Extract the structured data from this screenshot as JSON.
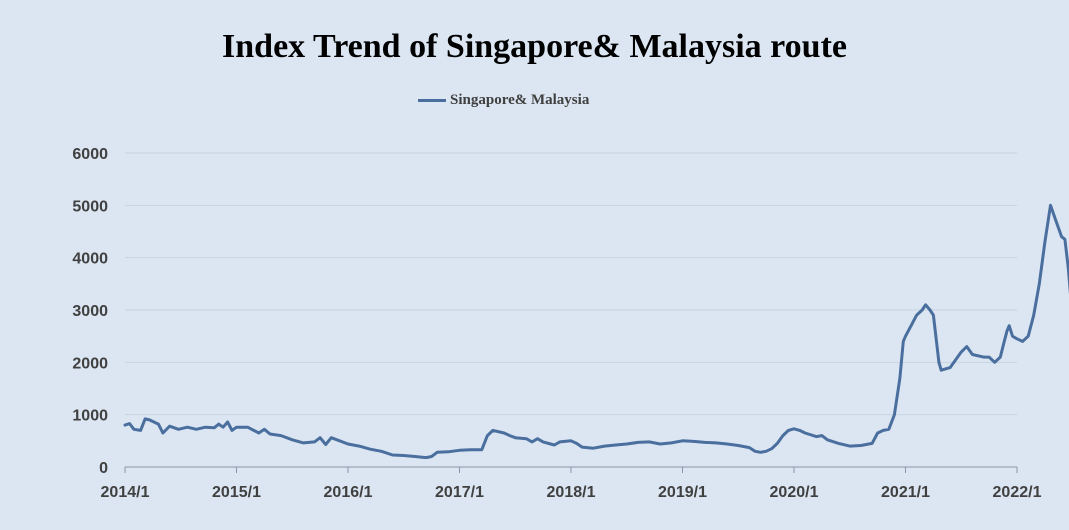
{
  "chart_data": {
    "type": "line",
    "title": "Index Trend of Singapore& Malaysia route",
    "xlabel": "",
    "ylabel": "",
    "ylim": [
      0,
      6000
    ],
    "yticks": [
      "0",
      "1000",
      "2000",
      "3000",
      "4000",
      "5000",
      "6000"
    ],
    "xticks": [
      "2014/1",
      "2015/1",
      "2016/1",
      "2017/1",
      "2018/1",
      "2019/1",
      "2020/1",
      "2021/1",
      "2022/1"
    ],
    "grid": "horizontal",
    "legend": "top-center",
    "line_color": "#4a6f9e",
    "series": [
      {
        "name": "Singapore& Malaysia",
        "points": [
          [
            0.0,
            800
          ],
          [
            0.04,
            830
          ],
          [
            0.08,
            720
          ],
          [
            0.14,
            700
          ],
          [
            0.18,
            920
          ],
          [
            0.22,
            900
          ],
          [
            0.3,
            820
          ],
          [
            0.34,
            650
          ],
          [
            0.4,
            780
          ],
          [
            0.48,
            720
          ],
          [
            0.56,
            760
          ],
          [
            0.64,
            720
          ],
          [
            0.72,
            760
          ],
          [
            0.8,
            750
          ],
          [
            0.84,
            820
          ],
          [
            0.88,
            760
          ],
          [
            0.92,
            860
          ],
          [
            0.96,
            700
          ],
          [
            1.0,
            760
          ],
          [
            1.1,
            760
          ],
          [
            1.2,
            650
          ],
          [
            1.25,
            720
          ],
          [
            1.3,
            630
          ],
          [
            1.4,
            600
          ],
          [
            1.5,
            520
          ],
          [
            1.6,
            460
          ],
          [
            1.7,
            480
          ],
          [
            1.75,
            560
          ],
          [
            1.8,
            430
          ],
          [
            1.85,
            560
          ],
          [
            1.9,
            520
          ],
          [
            2.0,
            440
          ],
          [
            2.1,
            400
          ],
          [
            2.2,
            340
          ],
          [
            2.3,
            300
          ],
          [
            2.4,
            230
          ],
          [
            2.5,
            220
          ],
          [
            2.6,
            200
          ],
          [
            2.7,
            180
          ],
          [
            2.75,
            200
          ],
          [
            2.8,
            280
          ],
          [
            2.9,
            290
          ],
          [
            3.0,
            320
          ],
          [
            3.1,
            330
          ],
          [
            3.2,
            330
          ],
          [
            3.25,
            600
          ],
          [
            3.3,
            700
          ],
          [
            3.4,
            650
          ],
          [
            3.45,
            600
          ],
          [
            3.5,
            560
          ],
          [
            3.6,
            540
          ],
          [
            3.65,
            480
          ],
          [
            3.7,
            540
          ],
          [
            3.75,
            480
          ],
          [
            3.85,
            420
          ],
          [
            3.9,
            480
          ],
          [
            4.0,
            500
          ],
          [
            4.05,
            450
          ],
          [
            4.1,
            380
          ],
          [
            4.2,
            360
          ],
          [
            4.3,
            400
          ],
          [
            4.4,
            420
          ],
          [
            4.5,
            440
          ],
          [
            4.6,
            470
          ],
          [
            4.7,
            480
          ],
          [
            4.8,
            440
          ],
          [
            4.9,
            460
          ],
          [
            5.0,
            500
          ],
          [
            5.1,
            490
          ],
          [
            5.2,
            470
          ],
          [
            5.3,
            460
          ],
          [
            5.4,
            440
          ],
          [
            5.5,
            410
          ],
          [
            5.6,
            370
          ],
          [
            5.65,
            300
          ],
          [
            5.7,
            280
          ],
          [
            5.75,
            300
          ],
          [
            5.8,
            350
          ],
          [
            5.85,
            450
          ],
          [
            5.9,
            600
          ],
          [
            5.95,
            700
          ],
          [
            6.0,
            730
          ],
          [
            6.05,
            700
          ],
          [
            6.1,
            650
          ],
          [
            6.2,
            580
          ],
          [
            6.25,
            600
          ],
          [
            6.3,
            520
          ],
          [
            6.4,
            450
          ],
          [
            6.5,
            400
          ],
          [
            6.6,
            410
          ],
          [
            6.7,
            450
          ],
          [
            6.75,
            650
          ],
          [
            6.8,
            700
          ],
          [
            6.85,
            720
          ],
          [
            6.9,
            1000
          ],
          [
            6.95,
            1700
          ],
          [
            6.98,
            2400
          ],
          [
            7.0,
            2500
          ],
          [
            7.05,
            2700
          ],
          [
            7.1,
            2900
          ],
          [
            7.15,
            3000
          ],
          [
            7.18,
            3100
          ],
          [
            7.22,
            3000
          ],
          [
            7.25,
            2900
          ],
          [
            7.3,
            2000
          ],
          [
            7.32,
            1850
          ],
          [
            7.4,
            1900
          ],
          [
            7.5,
            2200
          ],
          [
            7.55,
            2300
          ],
          [
            7.6,
            2150
          ],
          [
            7.7,
            2100
          ],
          [
            7.75,
            2100
          ],
          [
            7.8,
            2000
          ],
          [
            7.85,
            2100
          ],
          [
            7.88,
            2350
          ],
          [
            7.91,
            2600
          ],
          [
            7.93,
            2700
          ],
          [
            7.96,
            2500
          ],
          [
            8.0,
            2450
          ],
          [
            8.05,
            2400
          ],
          [
            8.1,
            2500
          ],
          [
            8.15,
            2900
          ],
          [
            8.2,
            3500
          ],
          [
            8.25,
            4300
          ],
          [
            8.3,
            5000
          ],
          [
            8.35,
            4700
          ],
          [
            8.4,
            4400
          ],
          [
            8.43,
            4350
          ],
          [
            8.46,
            3800
          ],
          [
            8.48,
            3300
          ]
        ]
      }
    ]
  }
}
